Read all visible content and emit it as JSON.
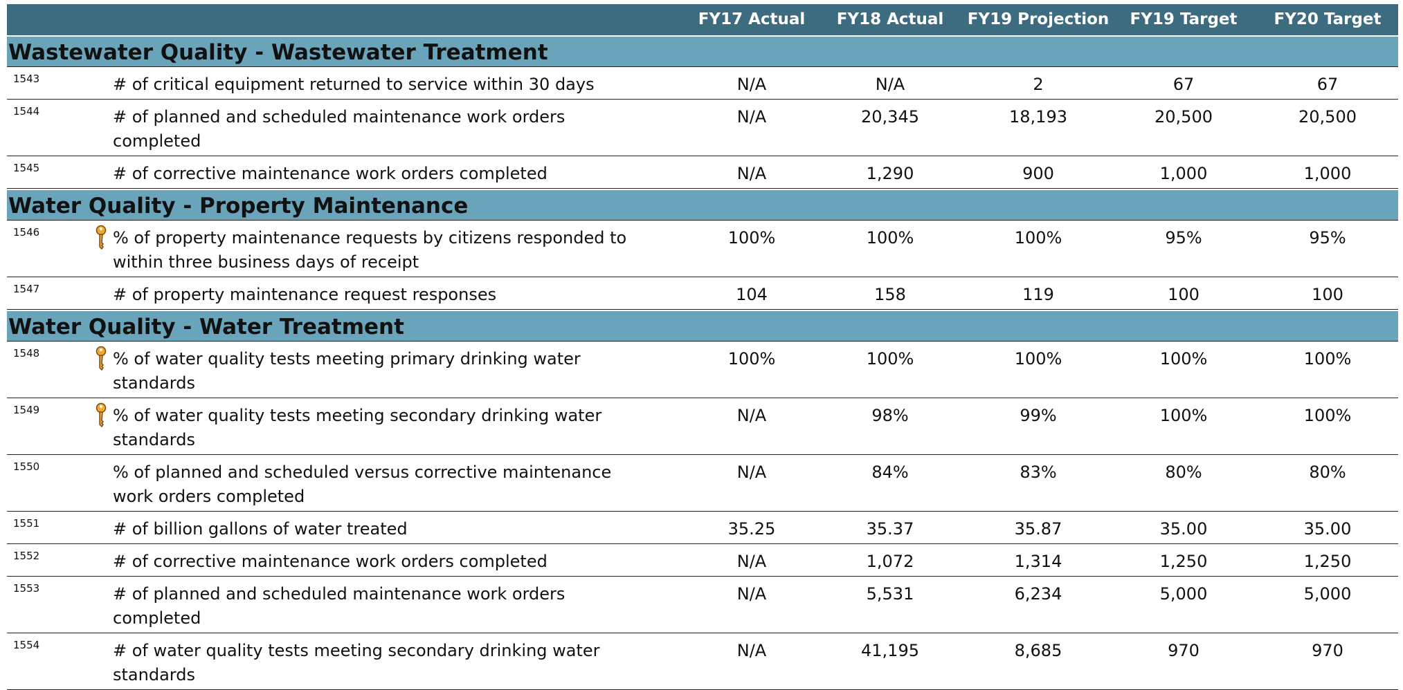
{
  "header": {
    "columns": [
      "FY17 Actual",
      "FY18 Actual",
      "FY19 Projection",
      "FY19 Target",
      "FY20 Target"
    ]
  },
  "sections": [
    {
      "title": "Wastewater Quality - Wastewater Treatment",
      "rows": [
        {
          "id": "1543",
          "label": "# of critical equipment returned to service within 30 days",
          "values": [
            "N/A",
            "N/A",
            "2",
            "67",
            "67"
          ]
        },
        {
          "id": "1544",
          "label": "# of planned and scheduled maintenance work orders completed",
          "values": [
            "N/A",
            "20,345",
            "18,193",
            "20,500",
            "20,500"
          ]
        },
        {
          "id": "1545",
          "label": "# of corrective maintenance work orders completed",
          "values": [
            "N/A",
            "1,290",
            "900",
            "1,000",
            "1,000"
          ]
        }
      ]
    },
    {
      "title": "Water Quality - Property Maintenance",
      "rows": [
        {
          "id": "1546",
          "label": "% of property maintenance requests by citizens responded to within three business days of receipt",
          "values": [
            "100%",
            "100%",
            "100%",
            "95%",
            "95%"
          ]
        },
        {
          "id": "1547",
          "label": "# of property maintenance request responses",
          "values": [
            "104",
            "158",
            "119",
            "100",
            "100"
          ]
        }
      ]
    },
    {
      "title": "Water Quality - Water Treatment",
      "rows": [
        {
          "id": "1548",
          "label": "% of water quality tests meeting primary drinking water standards",
          "values": [
            "100%",
            "100%",
            "100%",
            "100%",
            "100%"
          ]
        },
        {
          "id": "1549",
          "label": "% of water quality tests meeting secondary drinking water standards",
          "values": [
            "N/A",
            "98%",
            "99%",
            "100%",
            "100%"
          ]
        },
        {
          "id": "1550",
          "label": "% of planned and scheduled versus corrective maintenance work orders completed",
          "values": [
            "N/A",
            "84%",
            "83%",
            "80%",
            "80%"
          ]
        },
        {
          "id": "1551",
          "label": "# of billion gallons of water treated",
          "values": [
            "35.25",
            "35.37",
            "35.87",
            "35.00",
            "35.00"
          ]
        },
        {
          "id": "1552",
          "label": "# of corrective maintenance work orders completed",
          "values": [
            "N/A",
            "1,072",
            "1,314",
            "1,250",
            "1,250"
          ]
        },
        {
          "id": "1553",
          "label": "# of planned and scheduled maintenance work orders completed",
          "values": [
            "N/A",
            "5,531",
            "6,234",
            "5,000",
            "5,000"
          ]
        },
        {
          "id": "1554",
          "label": "# of water quality tests meeting secondary drinking water standards",
          "values": [
            "N/A",
            "41,195",
            "8,685",
            "970",
            "970"
          ]
        }
      ]
    }
  ]
}
